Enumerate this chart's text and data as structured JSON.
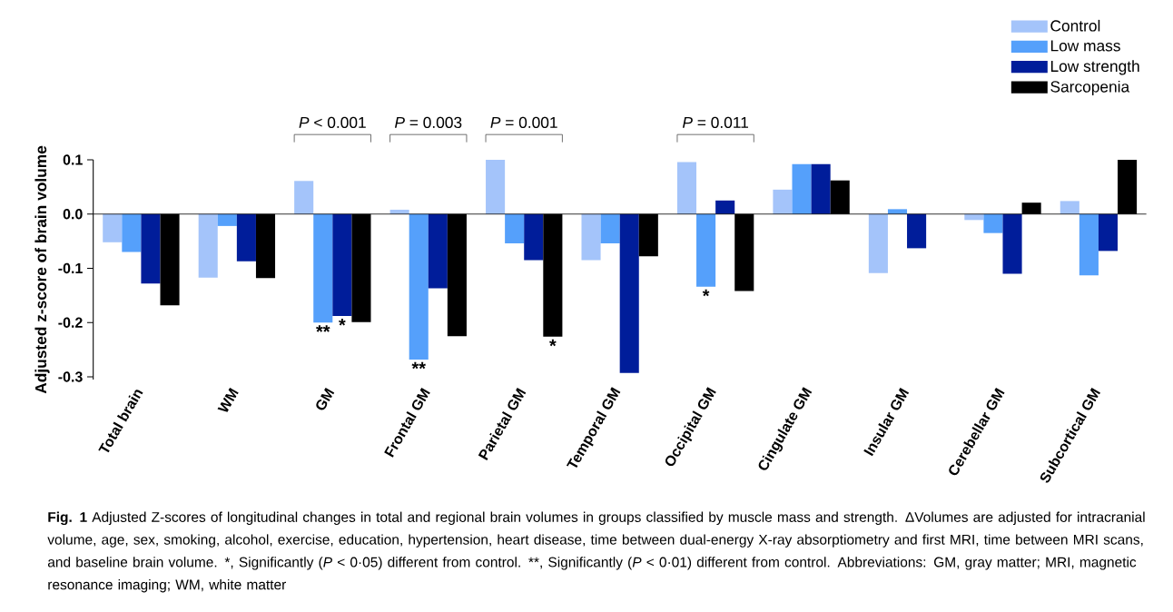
{
  "chart_data": {
    "type": "bar",
    "ylabel": "Adjusted z-score of brain volume",
    "categories": [
      "Total brain",
      "WM",
      "GM",
      "Frontal GM",
      "Parietal GM",
      "Temporal GM",
      "Occipital GM",
      "Cingulate GM",
      "Insular GM",
      "Cerebellar GM",
      "Subcortical GM"
    ],
    "series": [
      {
        "name": "Control",
        "color": "#a4c4fa",
        "values": [
          -0.052,
          -0.117,
          0.061,
          0.008,
          0.1,
          -0.085,
          0.096,
          0.045,
          -0.109,
          -0.011,
          0.024
        ]
      },
      {
        "name": "Low mass",
        "color": "#55a0fb",
        "values": [
          -0.07,
          -0.022,
          -0.2,
          -0.268,
          -0.054,
          -0.054,
          -0.134,
          0.092,
          0.009,
          -0.035,
          -0.113
        ]
      },
      {
        "name": "Low strength",
        "color": "#001d9a",
        "values": [
          -0.128,
          -0.087,
          -0.188,
          -0.137,
          -0.085,
          -0.293,
          0.025,
          0.092,
          -0.063,
          -0.11,
          -0.068
        ]
      },
      {
        "name": "Sarcopenia",
        "color": "#000000",
        "values": [
          -0.168,
          -0.118,
          -0.199,
          -0.225,
          -0.226,
          -0.078,
          -0.142,
          0.062,
          null,
          0.021,
          0.1
        ]
      }
    ],
    "ylim": [
      -0.305,
      0.1
    ],
    "yticks": [
      0.1,
      {
        "value": 0.0,
        "label": "0.0"
      },
      -0.1,
      -0.2,
      -0.3
    ],
    "legend": "top right",
    "annotations": [
      "*P* < 0.001",
      "*P* = 0.003",
      "*P* = 0.001",
      "*P* = 0.011",
      "*",
      "*",
      {
        "text": "**",
        "x": "GM",
        "y": -0.2
      },
      {
        "text": "**",
        "x": "Frontal GM",
        "y": -0.268
      },
      {
        "text": "*",
        "x": "Occipital GM",
        "y": -0.134
      },
      "**Fig. 1** Adjusted Z-scores of longitudinal changes in total and regional brain volumes in groups classified by muscle mass and strength. ΔVolumes are adjusted for intracranial volume, age, sex, smoking, alcohol, exercise, education, hypertension, heart disease, time between dual-energy X-ray absorptiometry and first MRI, time between MRI scans, and baseline brain volume. *, Significantly (*P* < 0·05) different from control. **, Significantly (*P* < 0·01) different from control. Abbreviations: GM, gray matter; MRI, magnetic resonance imaging; WM, white matter"
    ]
  }
}
